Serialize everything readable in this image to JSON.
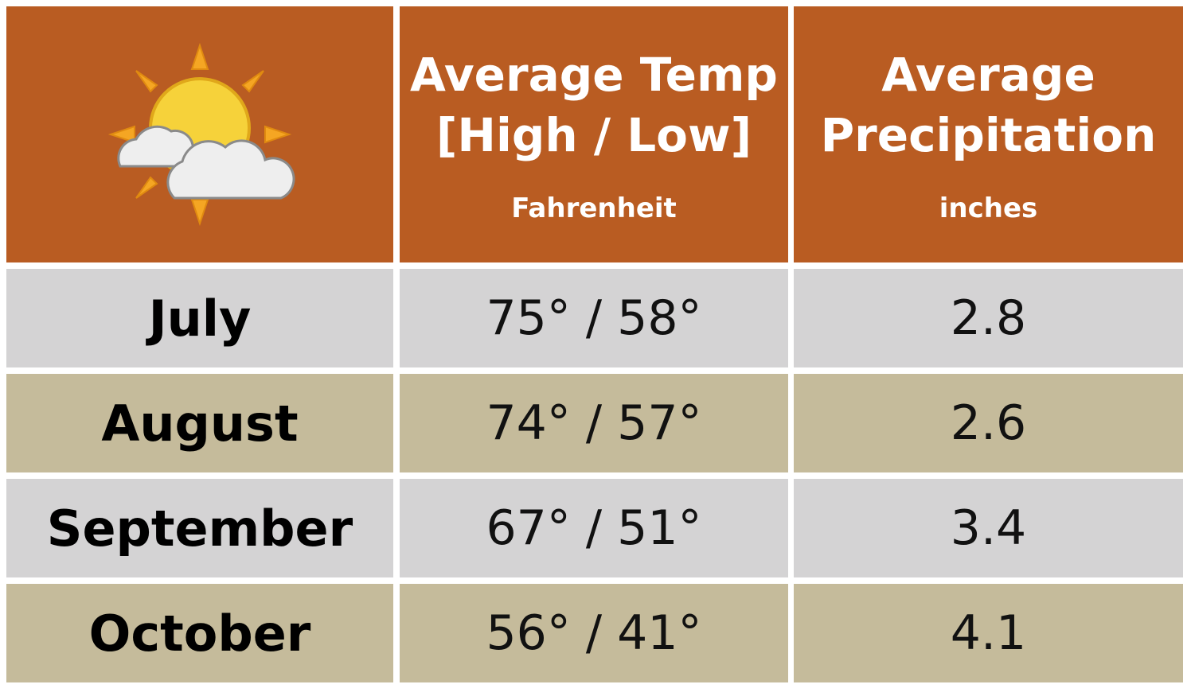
{
  "table": {
    "header": [
      {
        "title": [
          "Average Temp",
          "[High / Low]"
        ],
        "unit": "Fahrenheit"
      },
      {
        "title": [
          "Average",
          "Precipitation"
        ],
        "unit": "inches"
      }
    ],
    "rows": [
      [
        "July",
        "75° / 58°",
        2.8
      ],
      [
        "August",
        "74° / 57°",
        2.6
      ],
      [
        "September",
        "67° / 51°",
        3.4
      ],
      [
        "October",
        "56° / 41°",
        4.1
      ]
    ]
  }
}
